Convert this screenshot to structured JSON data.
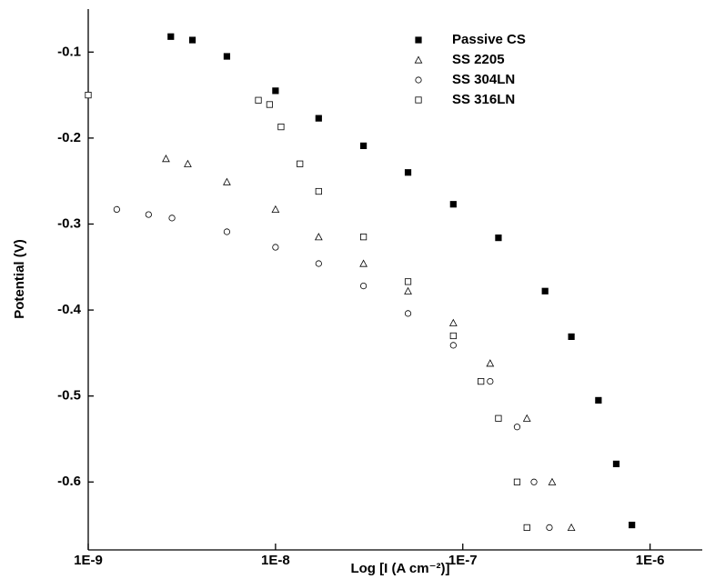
{
  "chart_data": {
    "type": "scatter",
    "x_label": "Log [I (A cm⁻²)]",
    "y_label": "Potential (V)",
    "xscale": "log",
    "xlim": [
      1e-09,
      1.9e-06
    ],
    "ylim": [
      -0.679,
      -0.05
    ],
    "xticks": [
      {
        "value": 1e-09,
        "label": "1E-9"
      },
      {
        "value": 1e-08,
        "label": "1E-8"
      },
      {
        "value": 1e-07,
        "label": "1E-7"
      },
      {
        "value": 1e-06,
        "label": "1E-6"
      }
    ],
    "yticks": [
      -0.1,
      -0.2,
      -0.3,
      -0.4,
      -0.5,
      -0.6
    ],
    "legend": "upper right",
    "series": [
      {
        "name": "Passive CS",
        "color": "#000000",
        "marker": "filled-square",
        "x": [
          2.76e-09,
          3.6e-09,
          5.5e-09,
          1e-08,
          1.7e-08,
          2.95e-08,
          5.1e-08,
          8.9e-08,
          1.55e-07,
          2.75e-07,
          3.8e-07,
          5.3e-07,
          6.6e-07,
          8e-07
        ],
        "values": [
          -0.082,
          -0.086,
          -0.105,
          -0.145,
          -0.177,
          -0.209,
          -0.24,
          -0.277,
          -0.316,
          -0.378,
          -0.431,
          -0.505,
          -0.579,
          -0.65
        ]
      },
      {
        "name": "SS 2205",
        "color": "#000000",
        "marker": "triangle",
        "x": [
          2.6e-09,
          3.4e-09,
          5.5e-09,
          1e-08,
          1.7e-08,
          2.95e-08,
          5.1e-08,
          8.9e-08,
          1.4e-07,
          2.2e-07,
          3e-07,
          3.8e-07
        ],
        "values": [
          -0.224,
          -0.23,
          -0.251,
          -0.283,
          -0.315,
          -0.346,
          -0.378,
          -0.415,
          -0.462,
          -0.526,
          -0.6,
          -0.653
        ]
      },
      {
        "name": "SS 304LN",
        "color": "#000000",
        "marker": "circle",
        "x": [
          1.42e-09,
          2.1e-09,
          2.8e-09,
          5.5e-09,
          1e-08,
          1.7e-08,
          2.95e-08,
          5.1e-08,
          8.9e-08,
          1.4e-07,
          1.95e-07,
          2.4e-07,
          2.9e-07
        ],
        "values": [
          -0.283,
          -0.289,
          -0.293,
          -0.309,
          -0.327,
          -0.346,
          -0.372,
          -0.404,
          -0.441,
          -0.483,
          -0.536,
          -0.6,
          -0.653
        ]
      },
      {
        "name": "SS 316LN",
        "color": "#000000",
        "marker": "square",
        "x": [
          1e-09,
          8.1e-09,
          9.3e-09,
          1.07e-08,
          1.35e-08,
          1.7e-08,
          2.95e-08,
          5.1e-08,
          8.9e-08,
          1.25e-07,
          1.55e-07,
          1.95e-07,
          2.2e-07
        ],
        "values": [
          -0.15,
          -0.156,
          -0.161,
          -0.187,
          -0.23,
          -0.262,
          -0.315,
          -0.367,
          -0.43,
          -0.483,
          -0.526,
          -0.6,
          -0.653
        ]
      }
    ]
  }
}
